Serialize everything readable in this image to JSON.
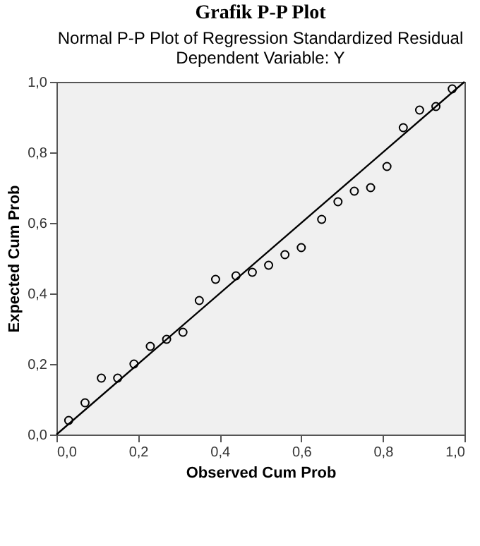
{
  "chart_data": {
    "type": "scatter",
    "title": "Grafik P-P Plot",
    "subtitle": "Normal P-P Plot of Regression Standardized Residual\nDependent Variable: Y",
    "xlabel": "Observed Cum Prob",
    "ylabel": "Expected Cum Prob",
    "xlim": [
      0,
      1
    ],
    "ylim": [
      0,
      1
    ],
    "xticks": [
      {
        "value": 0,
        "label": "0,0"
      },
      {
        "value": 0.2,
        "label": "0,2"
      },
      {
        "value": 0.4,
        "label": "0,4"
      },
      {
        "value": 0.6,
        "label": "0,6"
      },
      {
        "value": 0.8,
        "label": "0,8"
      },
      {
        "value": 1,
        "label": "1,0"
      }
    ],
    "yticks": [
      {
        "value": 0,
        "label": "0,0"
      },
      {
        "value": 0.2,
        "label": "0,2"
      },
      {
        "value": 0.4,
        "label": "0,4"
      },
      {
        "value": 0.6,
        "label": "0,6"
      },
      {
        "value": 0.8,
        "label": "0,8"
      },
      {
        "value": 1,
        "label": "1,0"
      }
    ],
    "grid": false,
    "series": [
      {
        "marker": "circle",
        "color": "#000000",
        "x": [
          0.03,
          0.07,
          0.11,
          0.15,
          0.19,
          0.23,
          0.27,
          0.31,
          0.35,
          0.39,
          0.44,
          0.48,
          0.52,
          0.56,
          0.6,
          0.65,
          0.69,
          0.73,
          0.77,
          0.81,
          0.85,
          0.89,
          0.93,
          0.97
        ],
        "values": [
          0.04,
          0.09,
          0.16,
          0.16,
          0.2,
          0.25,
          0.27,
          0.29,
          0.38,
          0.44,
          0.45,
          0.46,
          0.48,
          0.51,
          0.53,
          0.61,
          0.66,
          0.69,
          0.7,
          0.76,
          0.87,
          0.92,
          0.93,
          0.98
        ]
      },
      {
        "type": "line",
        "color": "#000000",
        "x": [
          0,
          1
        ],
        "values": [
          0,
          1
        ],
        "line_style": "solid"
      }
    ]
  }
}
